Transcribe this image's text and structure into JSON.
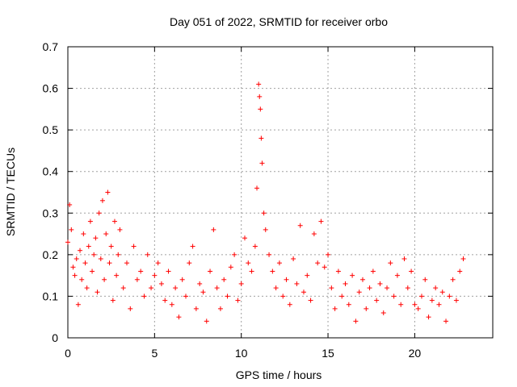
{
  "chart_data": {
    "type": "scatter",
    "title": "Day 051 of 2022, SRMTID for receiver orbo",
    "xlabel": "GPS time / hours",
    "ylabel": "SRMTID / TECUs",
    "xlim": [
      0,
      24.5
    ],
    "ylim": [
      0,
      0.7
    ],
    "xticks": [
      0,
      5,
      10,
      15,
      20
    ],
    "xtick_labels": [
      "0",
      "5",
      "10",
      "15",
      "20"
    ],
    "yticks": [
      0,
      0.1,
      0.2,
      0.3,
      0.4,
      0.5,
      0.6,
      0.7
    ],
    "ytick_labels": [
      "0",
      "0.1",
      "0.2",
      "0.3",
      "0.4",
      "0.5",
      "0.6",
      "0.7"
    ],
    "grid": true,
    "marker": "+",
    "series": [
      {
        "name": "SRMTID",
        "color": "#ff0000",
        "x": [
          0.0,
          0.1,
          0.2,
          0.3,
          0.4,
          0.5,
          0.6,
          0.7,
          0.8,
          0.9,
          1.0,
          1.1,
          1.2,
          1.3,
          1.4,
          1.5,
          1.6,
          1.7,
          1.8,
          1.9,
          2.0,
          2.1,
          2.2,
          2.3,
          2.4,
          2.5,
          2.6,
          2.7,
          2.8,
          2.9,
          3.0,
          3.2,
          3.4,
          3.6,
          3.8,
          4.0,
          4.2,
          4.4,
          4.6,
          4.8,
          5.0,
          5.2,
          5.4,
          5.6,
          5.8,
          6.0,
          6.2,
          6.4,
          6.6,
          6.8,
          7.0,
          7.2,
          7.4,
          7.6,
          7.8,
          8.0,
          8.2,
          8.4,
          8.6,
          8.8,
          9.0,
          9.2,
          9.4,
          9.6,
          9.8,
          10.0,
          10.2,
          10.4,
          10.6,
          10.8,
          10.9,
          11.0,
          11.05,
          11.1,
          11.15,
          11.2,
          11.3,
          11.4,
          11.6,
          11.8,
          12.0,
          12.2,
          12.4,
          12.6,
          12.8,
          13.0,
          13.2,
          13.4,
          13.6,
          13.8,
          14.0,
          14.2,
          14.4,
          14.6,
          14.8,
          15.0,
          15.2,
          15.4,
          15.6,
          15.8,
          16.0,
          16.2,
          16.4,
          16.6,
          16.8,
          17.0,
          17.2,
          17.4,
          17.6,
          17.8,
          18.0,
          18.2,
          18.4,
          18.6,
          18.8,
          19.0,
          19.2,
          19.4,
          19.6,
          19.8,
          20.0,
          20.2,
          20.4,
          20.6,
          20.8,
          21.0,
          21.2,
          21.4,
          21.6,
          21.8,
          22.0,
          22.2,
          22.4,
          22.6,
          22.8
        ],
        "y": [
          0.23,
          0.32,
          0.26,
          0.17,
          0.15,
          0.19,
          0.08,
          0.21,
          0.14,
          0.25,
          0.18,
          0.12,
          0.22,
          0.28,
          0.16,
          0.2,
          0.24,
          0.11,
          0.3,
          0.19,
          0.33,
          0.14,
          0.25,
          0.35,
          0.18,
          0.22,
          0.09,
          0.28,
          0.15,
          0.2,
          0.26,
          0.12,
          0.18,
          0.07,
          0.22,
          0.14,
          0.16,
          0.1,
          0.2,
          0.12,
          0.15,
          0.18,
          0.13,
          0.09,
          0.16,
          0.08,
          0.12,
          0.05,
          0.14,
          0.1,
          0.18,
          0.22,
          0.07,
          0.13,
          0.11,
          0.04,
          0.16,
          0.26,
          0.12,
          0.07,
          0.14,
          0.1,
          0.17,
          0.2,
          0.09,
          0.13,
          0.24,
          0.18,
          0.16,
          0.22,
          0.36,
          0.61,
          0.58,
          0.55,
          0.48,
          0.42,
          0.3,
          0.26,
          0.2,
          0.16,
          0.12,
          0.18,
          0.1,
          0.14,
          0.08,
          0.19,
          0.13,
          0.27,
          0.11,
          0.15,
          0.09,
          0.25,
          0.18,
          0.28,
          0.17,
          0.2,
          0.12,
          0.07,
          0.16,
          0.1,
          0.13,
          0.08,
          0.15,
          0.04,
          0.11,
          0.14,
          0.07,
          0.12,
          0.16,
          0.09,
          0.13,
          0.06,
          0.12,
          0.18,
          0.1,
          0.15,
          0.08,
          0.19,
          0.12,
          0.16,
          0.08,
          0.07,
          0.1,
          0.14,
          0.05,
          0.09,
          0.12,
          0.08,
          0.11,
          0.04,
          0.1,
          0.14,
          0.09,
          0.16,
          0.19
        ]
      }
    ]
  }
}
